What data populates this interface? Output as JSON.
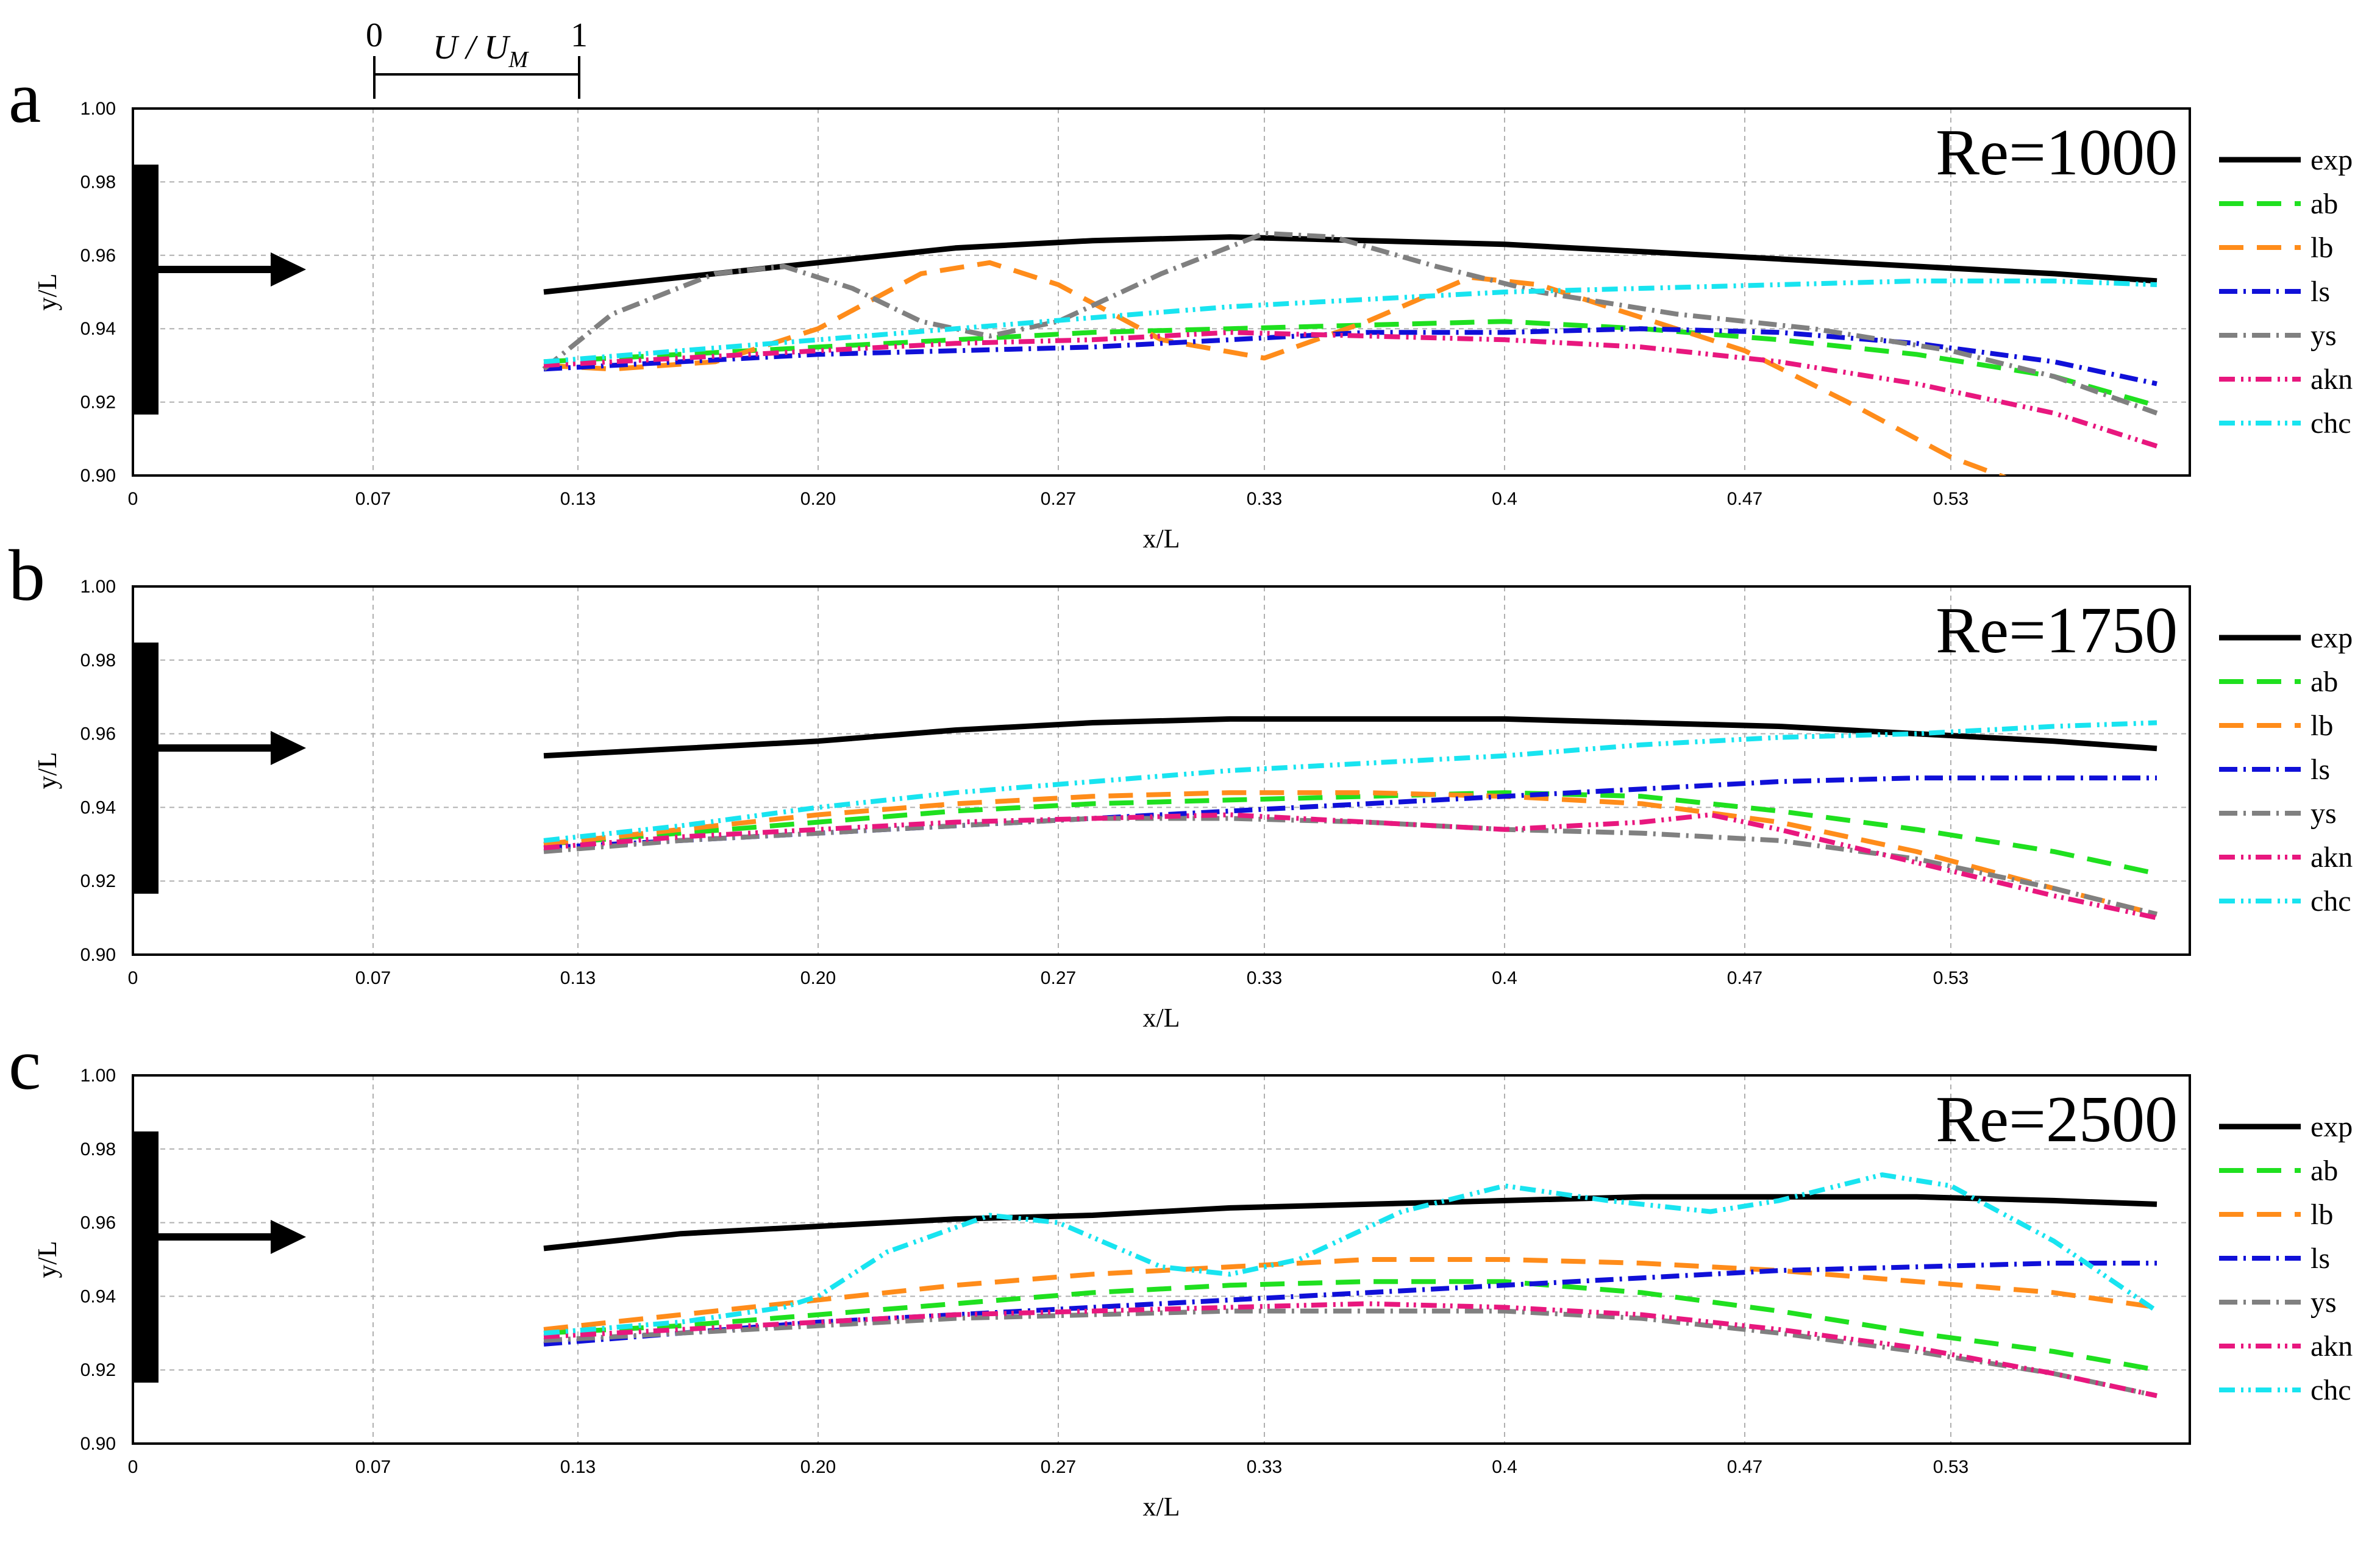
{
  "scale_bar": {
    "left": "0",
    "right": "1",
    "label": "U / U",
    "label_sub": "M"
  },
  "legend_styles": [
    {
      "key": "exp",
      "color": "#000000",
      "dash": ""
    },
    {
      "key": "ab",
      "color": "#1fe01f",
      "dash": "40,22"
    },
    {
      "key": "lb",
      "color": "#ff8c1a",
      "dash": "40,22"
    },
    {
      "key": "ls",
      "color": "#1010d8",
      "dash": "30,10,4,10"
    },
    {
      "key": "ys",
      "color": "#808080",
      "dash": "30,10,4,10"
    },
    {
      "key": "akn",
      "color": "#e8177e",
      "dash": "26,10,4,8,4,8"
    },
    {
      "key": "chc",
      "color": "#18e4f0",
      "dash": "26,10,4,8,4,8"
    }
  ],
  "chart_data": [
    {
      "type": "line",
      "panel": "a",
      "title": "Re=1000",
      "xlabel": "x/L",
      "ylabel": "y/L",
      "xlim": [
        0,
        0.6
      ],
      "ylim": [
        0.9,
        1.0
      ],
      "xticks": [
        "0",
        "0.07",
        "0.13",
        "0.20",
        "0.27",
        "0.33",
        "0.4",
        "0.47",
        "0.53"
      ],
      "yticks": [
        "0.90",
        "0.92",
        "0.94",
        "0.96",
        "0.98",
        "1.00"
      ],
      "series": [
        {
          "name": "exp",
          "x": [
            0.12,
            0.16,
            0.2,
            0.24,
            0.28,
            0.32,
            0.36,
            0.4,
            0.44,
            0.48,
            0.52,
            0.56,
            0.59
          ],
          "y": [
            0.95,
            0.954,
            0.958,
            0.962,
            0.964,
            0.965,
            0.964,
            0.963,
            0.961,
            0.959,
            0.957,
            0.955,
            0.953
          ]
        },
        {
          "name": "ab",
          "x": [
            0.12,
            0.16,
            0.2,
            0.24,
            0.28,
            0.32,
            0.36,
            0.4,
            0.44,
            0.48,
            0.52,
            0.56,
            0.59
          ],
          "y": [
            0.931,
            0.933,
            0.935,
            0.937,
            0.939,
            0.94,
            0.941,
            0.942,
            0.94,
            0.937,
            0.933,
            0.927,
            0.919
          ]
        },
        {
          "name": "lb",
          "x": [
            0.12,
            0.14,
            0.17,
            0.2,
            0.23,
            0.25,
            0.27,
            0.3,
            0.33,
            0.36,
            0.39,
            0.41,
            0.44,
            0.47,
            0.5,
            0.53,
            0.55
          ],
          "y": [
            0.93,
            0.929,
            0.931,
            0.94,
            0.955,
            0.958,
            0.952,
            0.937,
            0.932,
            0.942,
            0.954,
            0.952,
            0.943,
            0.934,
            0.92,
            0.905,
            0.898
          ]
        },
        {
          "name": "ls",
          "x": [
            0.12,
            0.16,
            0.2,
            0.24,
            0.28,
            0.32,
            0.36,
            0.4,
            0.44,
            0.48,
            0.52,
            0.56,
            0.59
          ],
          "y": [
            0.929,
            0.931,
            0.933,
            0.934,
            0.935,
            0.937,
            0.939,
            0.939,
            0.94,
            0.939,
            0.936,
            0.931,
            0.925
          ]
        },
        {
          "name": "ys",
          "x": [
            0.12,
            0.14,
            0.17,
            0.19,
            0.21,
            0.23,
            0.25,
            0.27,
            0.3,
            0.33,
            0.35,
            0.38,
            0.41,
            0.45,
            0.49,
            0.53,
            0.56,
            0.59
          ],
          "y": [
            0.929,
            0.944,
            0.955,
            0.957,
            0.951,
            0.942,
            0.938,
            0.942,
            0.955,
            0.966,
            0.965,
            0.957,
            0.95,
            0.944,
            0.94,
            0.934,
            0.927,
            0.917
          ]
        },
        {
          "name": "akn",
          "x": [
            0.12,
            0.16,
            0.2,
            0.24,
            0.28,
            0.32,
            0.36,
            0.4,
            0.44,
            0.48,
            0.52,
            0.56,
            0.59
          ],
          "y": [
            0.93,
            0.932,
            0.934,
            0.936,
            0.937,
            0.939,
            0.938,
            0.937,
            0.935,
            0.931,
            0.925,
            0.917,
            0.908
          ]
        },
        {
          "name": "chc",
          "x": [
            0.12,
            0.16,
            0.2,
            0.24,
            0.28,
            0.32,
            0.36,
            0.4,
            0.44,
            0.48,
            0.52,
            0.56,
            0.59
          ],
          "y": [
            0.931,
            0.934,
            0.937,
            0.94,
            0.943,
            0.946,
            0.948,
            0.95,
            0.951,
            0.952,
            0.953,
            0.953,
            0.952
          ]
        }
      ]
    },
    {
      "type": "line",
      "panel": "b",
      "title": "Re=1750",
      "xlabel": "x/L",
      "ylabel": "y/L",
      "xlim": [
        0,
        0.6
      ],
      "ylim": [
        0.9,
        1.0
      ],
      "xticks": [
        "0",
        "0.07",
        "0.13",
        "0.20",
        "0.27",
        "0.33",
        "0.4",
        "0.47",
        "0.53"
      ],
      "yticks": [
        "0.90",
        "0.92",
        "0.94",
        "0.96",
        "0.98",
        "1.00"
      ],
      "series": [
        {
          "name": "exp",
          "x": [
            0.12,
            0.16,
            0.2,
            0.24,
            0.28,
            0.32,
            0.36,
            0.4,
            0.44,
            0.48,
            0.52,
            0.56,
            0.59
          ],
          "y": [
            0.954,
            0.956,
            0.958,
            0.961,
            0.963,
            0.964,
            0.964,
            0.964,
            0.963,
            0.962,
            0.96,
            0.958,
            0.956
          ]
        },
        {
          "name": "ab",
          "x": [
            0.12,
            0.16,
            0.2,
            0.24,
            0.28,
            0.32,
            0.36,
            0.4,
            0.44,
            0.48,
            0.52,
            0.56,
            0.59
          ],
          "y": [
            0.93,
            0.933,
            0.936,
            0.939,
            0.941,
            0.942,
            0.943,
            0.944,
            0.943,
            0.939,
            0.934,
            0.928,
            0.922
          ]
        },
        {
          "name": "lb",
          "x": [
            0.12,
            0.16,
            0.2,
            0.24,
            0.28,
            0.32,
            0.36,
            0.4,
            0.44,
            0.48,
            0.52,
            0.56,
            0.59
          ],
          "y": [
            0.93,
            0.934,
            0.938,
            0.941,
            0.943,
            0.944,
            0.944,
            0.943,
            0.941,
            0.936,
            0.928,
            0.918,
            0.911
          ]
        },
        {
          "name": "ls",
          "x": [
            0.12,
            0.16,
            0.2,
            0.24,
            0.28,
            0.32,
            0.36,
            0.4,
            0.44,
            0.48,
            0.52,
            0.56,
            0.59
          ],
          "y": [
            0.929,
            0.931,
            0.933,
            0.935,
            0.937,
            0.939,
            0.941,
            0.943,
            0.945,
            0.947,
            0.948,
            0.948,
            0.948
          ]
        },
        {
          "name": "ys",
          "x": [
            0.12,
            0.16,
            0.2,
            0.24,
            0.28,
            0.32,
            0.36,
            0.4,
            0.44,
            0.48,
            0.52,
            0.56,
            0.59
          ],
          "y": [
            0.928,
            0.931,
            0.933,
            0.935,
            0.937,
            0.937,
            0.936,
            0.934,
            0.933,
            0.931,
            0.926,
            0.918,
            0.911
          ]
        },
        {
          "name": "akn",
          "x": [
            0.12,
            0.16,
            0.2,
            0.24,
            0.28,
            0.32,
            0.36,
            0.4,
            0.44,
            0.46,
            0.48,
            0.52,
            0.56,
            0.59
          ],
          "y": [
            0.929,
            0.932,
            0.934,
            0.936,
            0.937,
            0.938,
            0.936,
            0.934,
            0.936,
            0.938,
            0.934,
            0.925,
            0.916,
            0.91
          ]
        },
        {
          "name": "chc",
          "x": [
            0.12,
            0.16,
            0.2,
            0.24,
            0.28,
            0.32,
            0.36,
            0.4,
            0.44,
            0.48,
            0.52,
            0.56,
            0.59
          ],
          "y": [
            0.931,
            0.935,
            0.94,
            0.944,
            0.947,
            0.95,
            0.952,
            0.954,
            0.957,
            0.959,
            0.96,
            0.962,
            0.963
          ]
        }
      ]
    },
    {
      "type": "line",
      "panel": "c",
      "title": "Re=2500",
      "xlabel": "x/L",
      "ylabel": "y/L",
      "xlim": [
        0,
        0.6
      ],
      "ylim": [
        0.9,
        1.0
      ],
      "xticks": [
        "0",
        "0.07",
        "0.13",
        "0.20",
        "0.27",
        "0.33",
        "0.4",
        "0.47",
        "0.53"
      ],
      "yticks": [
        "0.90",
        "0.92",
        "0.94",
        "0.96",
        "0.98",
        "1.00"
      ],
      "series": [
        {
          "name": "exp",
          "x": [
            0.12,
            0.16,
            0.2,
            0.24,
            0.28,
            0.32,
            0.36,
            0.4,
            0.44,
            0.48,
            0.52,
            0.56,
            0.59
          ],
          "y": [
            0.953,
            0.957,
            0.959,
            0.961,
            0.962,
            0.964,
            0.965,
            0.966,
            0.967,
            0.967,
            0.967,
            0.966,
            0.965
          ]
        },
        {
          "name": "ab",
          "x": [
            0.12,
            0.16,
            0.2,
            0.24,
            0.28,
            0.32,
            0.36,
            0.4,
            0.44,
            0.48,
            0.52,
            0.56,
            0.59
          ],
          "y": [
            0.93,
            0.932,
            0.935,
            0.938,
            0.941,
            0.943,
            0.944,
            0.944,
            0.941,
            0.936,
            0.93,
            0.925,
            0.92
          ]
        },
        {
          "name": "lb",
          "x": [
            0.12,
            0.16,
            0.2,
            0.24,
            0.28,
            0.32,
            0.36,
            0.4,
            0.44,
            0.48,
            0.52,
            0.56,
            0.59
          ],
          "y": [
            0.931,
            0.935,
            0.939,
            0.943,
            0.946,
            0.948,
            0.95,
            0.95,
            0.949,
            0.947,
            0.944,
            0.941,
            0.937
          ]
        },
        {
          "name": "ls",
          "x": [
            0.12,
            0.16,
            0.2,
            0.24,
            0.28,
            0.32,
            0.36,
            0.4,
            0.44,
            0.48,
            0.52,
            0.56,
            0.59
          ],
          "y": [
            0.927,
            0.93,
            0.933,
            0.935,
            0.937,
            0.939,
            0.941,
            0.943,
            0.945,
            0.947,
            0.948,
            0.949,
            0.949
          ]
        },
        {
          "name": "ys",
          "x": [
            0.12,
            0.16,
            0.2,
            0.24,
            0.28,
            0.32,
            0.36,
            0.4,
            0.44,
            0.48,
            0.52,
            0.56,
            0.59
          ],
          "y": [
            0.928,
            0.93,
            0.932,
            0.934,
            0.935,
            0.936,
            0.936,
            0.936,
            0.934,
            0.93,
            0.925,
            0.919,
            0.913
          ]
        },
        {
          "name": "akn",
          "x": [
            0.12,
            0.16,
            0.2,
            0.24,
            0.28,
            0.32,
            0.36,
            0.4,
            0.44,
            0.48,
            0.52,
            0.56,
            0.59
          ],
          "y": [
            0.929,
            0.931,
            0.933,
            0.935,
            0.936,
            0.937,
            0.938,
            0.937,
            0.935,
            0.931,
            0.926,
            0.919,
            0.913
          ]
        },
        {
          "name": "chc",
          "x": [
            0.12,
            0.16,
            0.19,
            0.2,
            0.22,
            0.25,
            0.27,
            0.3,
            0.32,
            0.34,
            0.37,
            0.4,
            0.43,
            0.46,
            0.48,
            0.51,
            0.53,
            0.56,
            0.59
          ],
          "y": [
            0.93,
            0.933,
            0.937,
            0.94,
            0.952,
            0.962,
            0.96,
            0.948,
            0.946,
            0.95,
            0.963,
            0.97,
            0.966,
            0.963,
            0.966,
            0.973,
            0.97,
            0.955,
            0.936
          ]
        }
      ]
    }
  ]
}
